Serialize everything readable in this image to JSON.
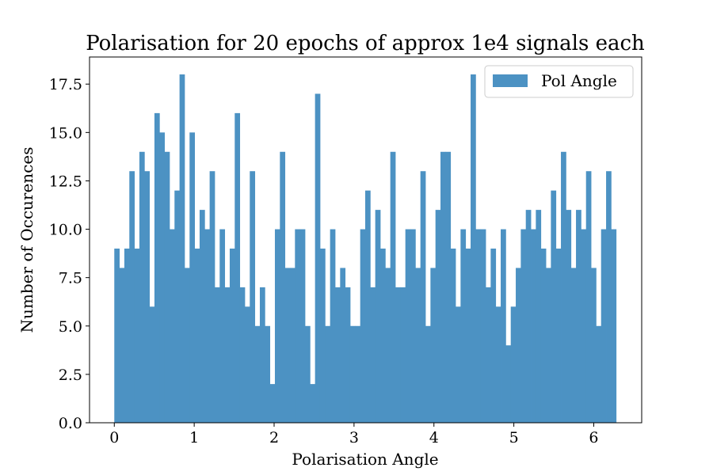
{
  "chart_data": {
    "type": "bar",
    "title": "Polarisation for 20 epochs of approx 1e4 signals each",
    "xlabel": "Polarisation Angle",
    "ylabel": "Number of Occurences",
    "xlim": [
      -0.31,
      6.6
    ],
    "ylim": [
      0,
      18.9
    ],
    "bin_start": 0,
    "bin_width": 0.0628,
    "x_ticks": [
      0,
      1,
      2,
      3,
      4,
      5,
      6
    ],
    "x_tick_labels": [
      "0",
      "1",
      "2",
      "3",
      "4",
      "5",
      "6"
    ],
    "y_ticks": [
      0,
      2.5,
      5,
      7.5,
      10,
      12.5,
      15,
      17.5
    ],
    "y_tick_labels": [
      "0.0",
      "2.5",
      "5.0",
      "7.5",
      "10.0",
      "12.5",
      "15.0",
      "17.5"
    ],
    "grid": false,
    "legend": {
      "position": "top-right",
      "entries": [
        {
          "name": "Pol Angle",
          "color": "#4c92c3"
        }
      ]
    },
    "series": [
      {
        "name": "Pol Angle",
        "color": "#4c92c3",
        "values": [
          9,
          8,
          9,
          13,
          9,
          14,
          13,
          6,
          16,
          15,
          14,
          10,
          12,
          18,
          8,
          15,
          9,
          11,
          10,
          13,
          7,
          10,
          7,
          9,
          16,
          7,
          6,
          13,
          5,
          7,
          5,
          2,
          10,
          14,
          8,
          8,
          10,
          10,
          5,
          2,
          17,
          9,
          5,
          10,
          7,
          8,
          7,
          5,
          5,
          10,
          12,
          7,
          11,
          9,
          8,
          14,
          7,
          7,
          10,
          10,
          8,
          13,
          5,
          8,
          11,
          14,
          14,
          9,
          6,
          10,
          9,
          18,
          10,
          10,
          7,
          9,
          6,
          10,
          4,
          6,
          8,
          10,
          11,
          10,
          11,
          9,
          8,
          12,
          9,
          14,
          11,
          8,
          11,
          10,
          13,
          8,
          5,
          10,
          13,
          10
        ]
      }
    ]
  }
}
